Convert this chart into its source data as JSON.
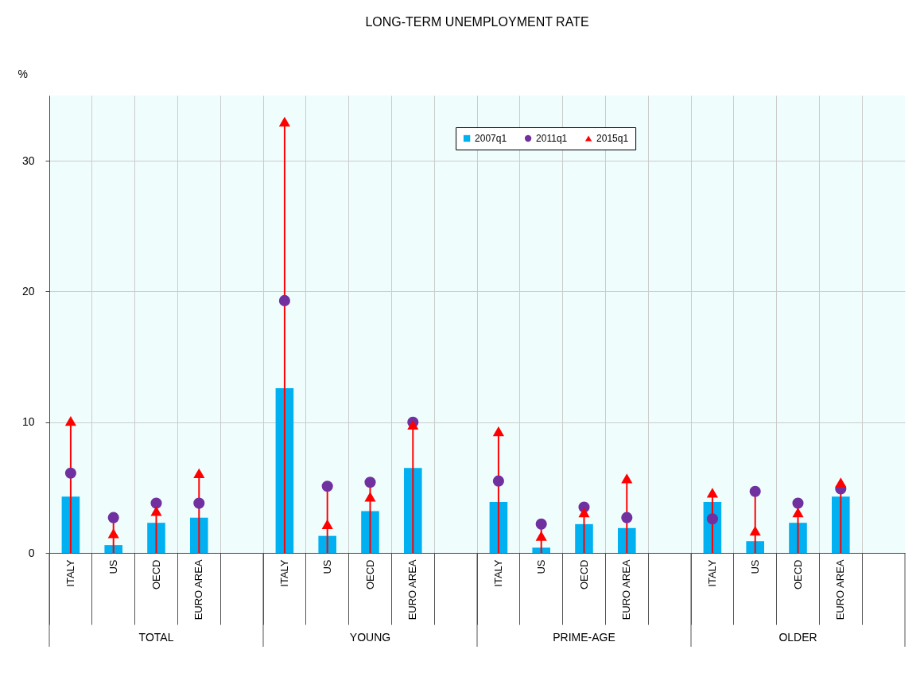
{
  "chart_data": {
    "type": "bar",
    "title": "LONG-TERM UNEMPLOYMENT RATE",
    "ylabel": "%",
    "categories": [
      "ITALY",
      "US",
      "OECD",
      "EURO AREA",
      null,
      "ITALY",
      "US",
      "OECD",
      "EURO AREA",
      null,
      "ITALY",
      "US",
      "OECD",
      "EURO AREA",
      null,
      "ITALY",
      "US",
      "OECD",
      "EURO AREA",
      null
    ],
    "annotations": [
      "TOTAL",
      "YOUNG",
      "PRIME-AGE",
      "OLDER"
    ],
    "series": [
      {
        "name": "2007q1",
        "type": "bar",
        "color": "#00b0f0",
        "values": [
          4.3,
          0.6,
          2.3,
          2.7,
          null,
          12.6,
          1.3,
          3.2,
          6.5,
          null,
          3.9,
          0.4,
          2.2,
          1.9,
          null,
          3.9,
          0.9,
          2.3,
          4.3,
          null
        ]
      },
      {
        "name": "2011q1",
        "type": "scatter",
        "marker": "circle",
        "color": "#7030a0",
        "values": [
          6.1,
          2.7,
          3.8,
          3.8,
          null,
          19.3,
          5.1,
          5.4,
          10.0,
          null,
          5.5,
          2.2,
          3.5,
          2.7,
          null,
          2.6,
          4.7,
          3.8,
          4.9,
          null
        ],
        "errors": [
          null,
          [
            0,
            2.7
          ],
          [
            0,
            3.8
          ],
          null,
          null,
          null,
          [
            0,
            5.1
          ],
          [
            0,
            5.4
          ],
          [
            0,
            10.0
          ],
          null,
          null,
          [
            0,
            2.2
          ],
          [
            0,
            3.5
          ],
          null,
          null,
          null,
          [
            0,
            4.7
          ],
          [
            0,
            3.8
          ],
          null,
          null
        ]
      },
      {
        "name": "2015q1",
        "type": "scatter",
        "marker": "triangle",
        "color": "#ff0000",
        "values": [
          10.1,
          1.5,
          3.2,
          6.1,
          null,
          33.0,
          2.2,
          4.3,
          9.8,
          null,
          9.3,
          1.3,
          3.1,
          5.7,
          null,
          4.6,
          1.7,
          3.1,
          5.4,
          null
        ],
        "errors": [
          [
            0,
            10.1
          ],
          null,
          null,
          [
            0,
            6.1
          ],
          null,
          [
            0,
            33.0
          ],
          null,
          null,
          null,
          null,
          [
            0,
            9.3
          ],
          null,
          null,
          [
            0,
            5.7
          ],
          null,
          [
            0,
            4.6
          ],
          null,
          null,
          [
            0,
            5.4
          ],
          null
        ]
      }
    ],
    "ylim": [
      0,
      35
    ],
    "yticks": [
      0,
      10,
      20,
      30
    ],
    "grid": true,
    "legend": "top"
  }
}
